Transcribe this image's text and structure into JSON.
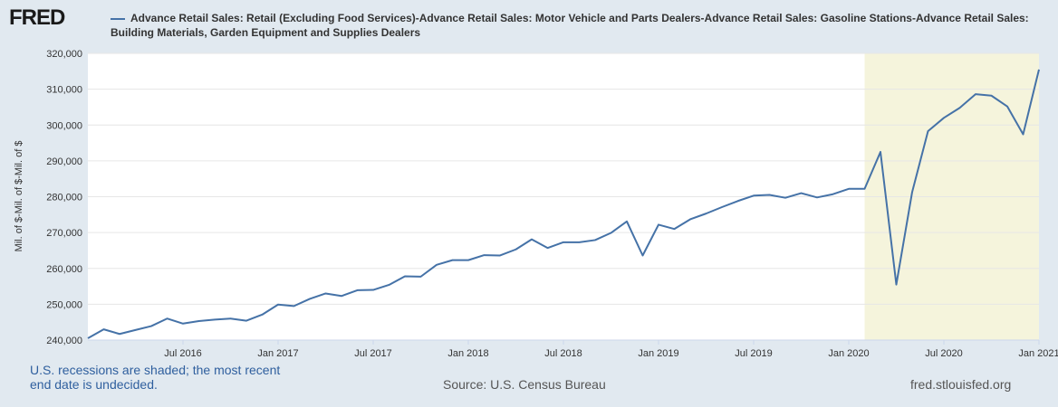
{
  "chart_data": {
    "type": "line",
    "logo": "FRED",
    "title": "Advance Retail Sales: Retail (Excluding Food Services)-Advance Retail Sales: Motor Vehicle and Parts Dealers-Advance Retail Sales: Gasoline Stations-Advance Retail Sales: Building Materials, Garden Equipment and Supplies Dealers",
    "y_label": "Mil. of $-Mil. of $-Mil. of $",
    "note": "U.S. recessions are shaded; the most recent end date is undecided.",
    "source": "Source: U.S. Census Bureau",
    "url": "fred.stlouisfed.org",
    "x": [
      "2016-01",
      "2016-02",
      "2016-03",
      "2016-04",
      "2016-05",
      "2016-06",
      "2016-07",
      "2016-08",
      "2016-09",
      "2016-10",
      "2016-11",
      "2016-12",
      "2017-01",
      "2017-02",
      "2017-03",
      "2017-04",
      "2017-05",
      "2017-06",
      "2017-07",
      "2017-08",
      "2017-09",
      "2017-10",
      "2017-11",
      "2017-12",
      "2018-01",
      "2018-02",
      "2018-03",
      "2018-04",
      "2018-05",
      "2018-06",
      "2018-07",
      "2018-08",
      "2018-09",
      "2018-10",
      "2018-11",
      "2018-12",
      "2019-01",
      "2019-02",
      "2019-03",
      "2019-04",
      "2019-05",
      "2019-06",
      "2019-07",
      "2019-08",
      "2019-09",
      "2019-10",
      "2019-11",
      "2019-12",
      "2020-01",
      "2020-02",
      "2020-03",
      "2020-04",
      "2020-05",
      "2020-06",
      "2020-07",
      "2020-08",
      "2020-09",
      "2020-10",
      "2020-11",
      "2020-12",
      "2021-01"
    ],
    "series": [
      {
        "name": "Advance Retail Sales: Retail (Excluding Food Services)-Advance Retail Sales: Motor Vehicle and Parts Dealers-Advance Retail Sales: Gasoline Stations-Advance Retail Sales: Building Materials, Garden Equipment and Supplies Dealers",
        "color": "#4572a7",
        "values": [
          240500,
          243000,
          241700,
          242800,
          243900,
          246000,
          244600,
          245300,
          245700,
          246000,
          245400,
          247100,
          249900,
          249500,
          251500,
          253000,
          252300,
          253900,
          254000,
          255400,
          257800,
          257700,
          261000,
          262300,
          262300,
          263700,
          263600,
          265300,
          268100,
          265700,
          267300,
          267300,
          267900,
          269900,
          273100,
          263600,
          272200,
          271000,
          273700,
          275300,
          277100,
          278800,
          280300,
          280500,
          279700,
          281000,
          279800,
          280700,
          282200,
          282200,
          292500,
          255500,
          281300,
          298300,
          302000,
          304800,
          308600,
          308200,
          305200,
          297400,
          315500
        ]
      }
    ],
    "xlim": [
      "2016-01",
      "2021-01"
    ],
    "xticks": [
      {
        "value": "2016-07",
        "label": "Jul 2016"
      },
      {
        "value": "2017-01",
        "label": "Jan 2017"
      },
      {
        "value": "2017-07",
        "label": "Jul 2017"
      },
      {
        "value": "2018-01",
        "label": "Jan 2018"
      },
      {
        "value": "2018-07",
        "label": "Jul 2018"
      },
      {
        "value": "2019-01",
        "label": "Jan 2019"
      },
      {
        "value": "2019-07",
        "label": "Jul 2019"
      },
      {
        "value": "2020-01",
        "label": "Jan 2020"
      },
      {
        "value": "2020-07",
        "label": "Jul 2020"
      },
      {
        "value": "2021-01",
        "label": "Jan 2021"
      }
    ],
    "ylim": [
      240000,
      320000
    ],
    "yticks": [
      {
        "value": 240000,
        "label": "240,000"
      },
      {
        "value": 250000,
        "label": "250,000"
      },
      {
        "value": 260000,
        "label": "260,000"
      },
      {
        "value": 270000,
        "label": "270,000"
      },
      {
        "value": 280000,
        "label": "280,000"
      },
      {
        "value": 290000,
        "label": "290,000"
      },
      {
        "value": 300000,
        "label": "300,000"
      },
      {
        "value": 310000,
        "label": "310,000"
      },
      {
        "value": 320000,
        "label": "320,000"
      }
    ],
    "grid": true,
    "recessions": [
      {
        "start": "2020-02",
        "end": "2021-01"
      }
    ]
  }
}
